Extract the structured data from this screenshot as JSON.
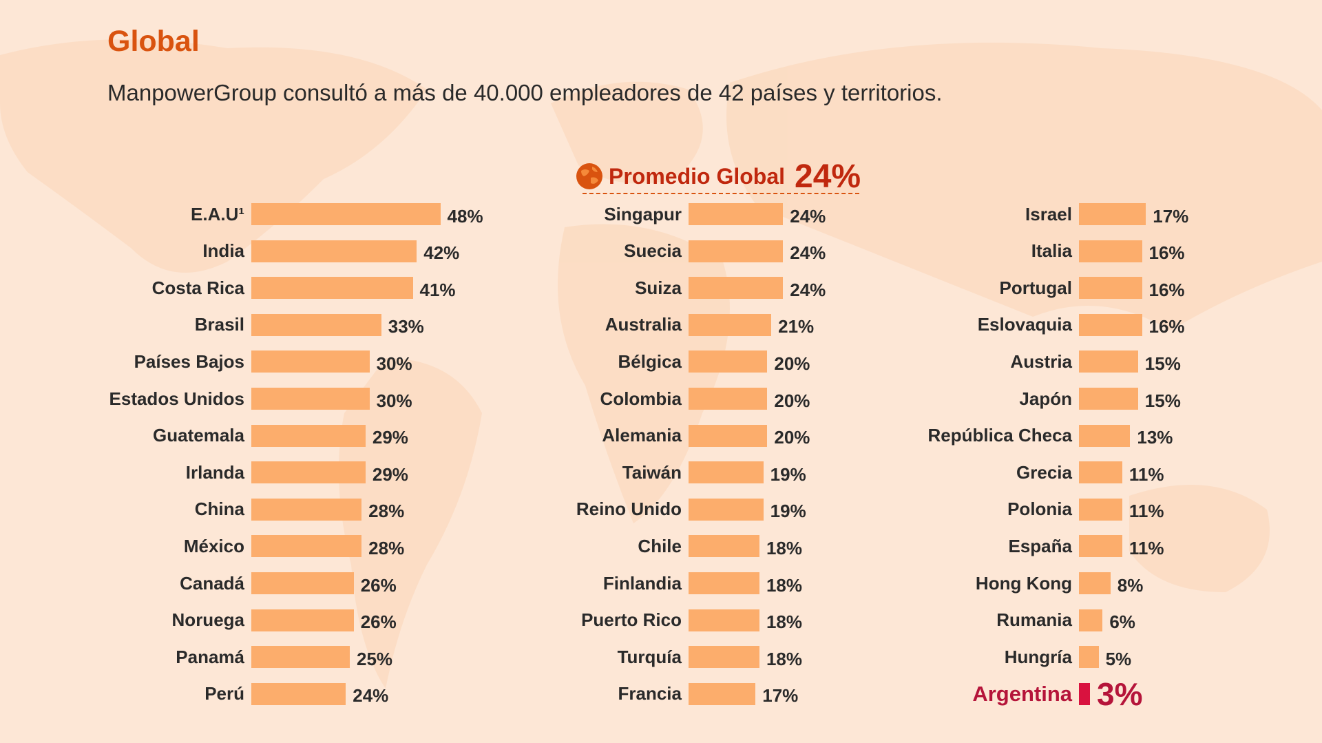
{
  "header": {
    "title": "Global",
    "subtitle": "ManpowerGroup consultó a más de 40.000 empleadores de 42 países y territorios."
  },
  "global_average": {
    "label": "Promedio Global",
    "value": "24%",
    "icon": "globe-icon"
  },
  "colors": {
    "bar": "#fcad6c",
    "highlight": "#d9123f",
    "title": "#d9530f",
    "average": "#c0280e"
  },
  "chart_data": {
    "type": "bar",
    "orientation": "horizontal",
    "unit": "%",
    "columns": [
      {
        "categories": [
          "E.A.U¹",
          "India",
          "Costa Rica",
          "Brasil",
          "Países Bajos",
          "Estados Unidos",
          "Guatemala",
          "Irlanda",
          "China",
          "México",
          "Canadá",
          "Noruega",
          "Panamá",
          "Perú"
        ],
        "values": [
          48,
          42,
          41,
          33,
          30,
          30,
          29,
          29,
          28,
          28,
          26,
          26,
          25,
          24
        ]
      },
      {
        "categories": [
          "Singapur",
          "Suecia",
          "Suiza",
          "Australia",
          "Bélgica",
          "Colombia",
          "Alemania",
          "Taiwán",
          "Reino Unido",
          "Chile",
          "Finlandia",
          "Puerto Rico",
          "Turquía",
          "Francia"
        ],
        "values": [
          24,
          24,
          24,
          21,
          20,
          20,
          20,
          19,
          19,
          18,
          18,
          18,
          18,
          17
        ]
      },
      {
        "categories": [
          "Israel",
          "Italia",
          "Portugal",
          "Eslovaquia",
          "Austria",
          "Japón",
          "República Checa",
          "Grecia",
          "Polonia",
          "España",
          "Hong Kong",
          "Rumania",
          "Hungría",
          "Argentina"
        ],
        "values": [
          17,
          16,
          16,
          16,
          15,
          15,
          13,
          11,
          11,
          11,
          8,
          6,
          5,
          3
        ]
      }
    ],
    "highlight": "Argentina"
  }
}
